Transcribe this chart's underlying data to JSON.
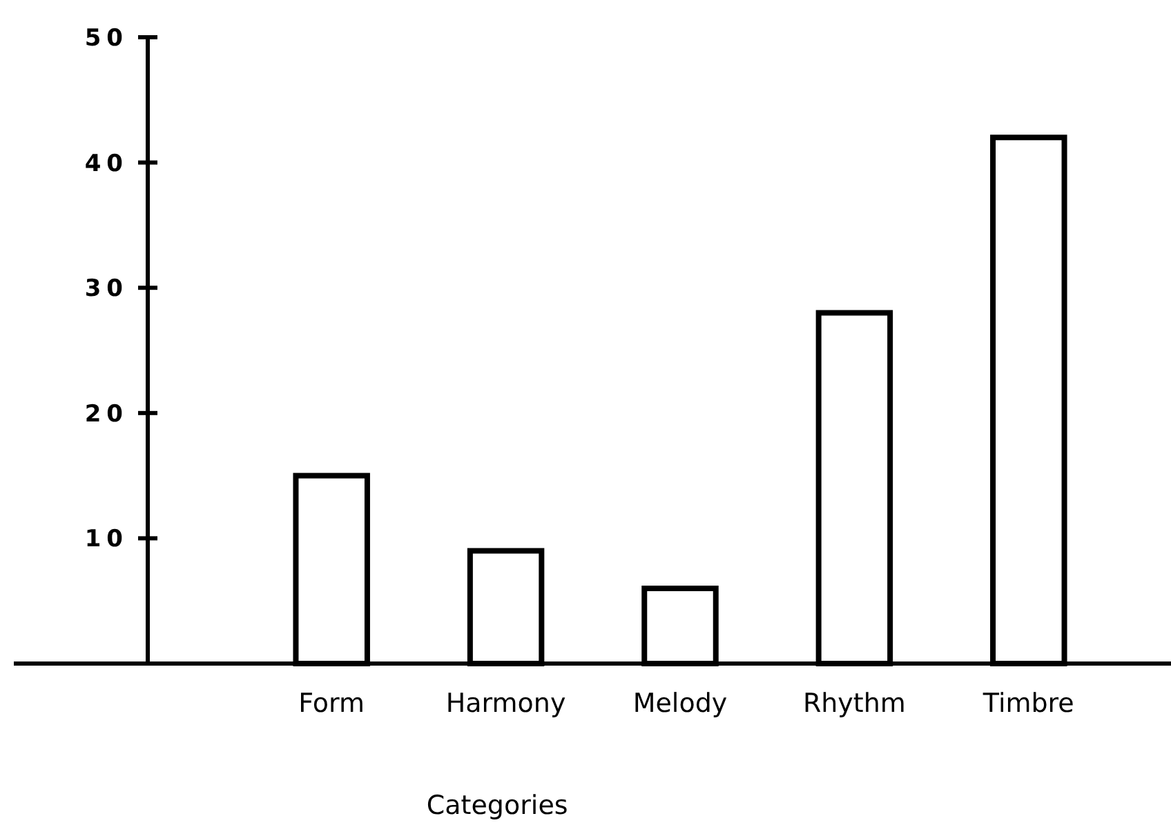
{
  "chart_data": {
    "type": "bar",
    "xlabel": "Categories",
    "categories": [
      "Form",
      "Harmony",
      "Melody",
      "Rhythm",
      "Timbre"
    ],
    "values": [
      15,
      9,
      6,
      28,
      42
    ],
    "color": "#ffffff",
    "ylim": [
      0,
      50
    ],
    "yticks": [
      10,
      20,
      30,
      40,
      50
    ],
    "grid": false
  }
}
